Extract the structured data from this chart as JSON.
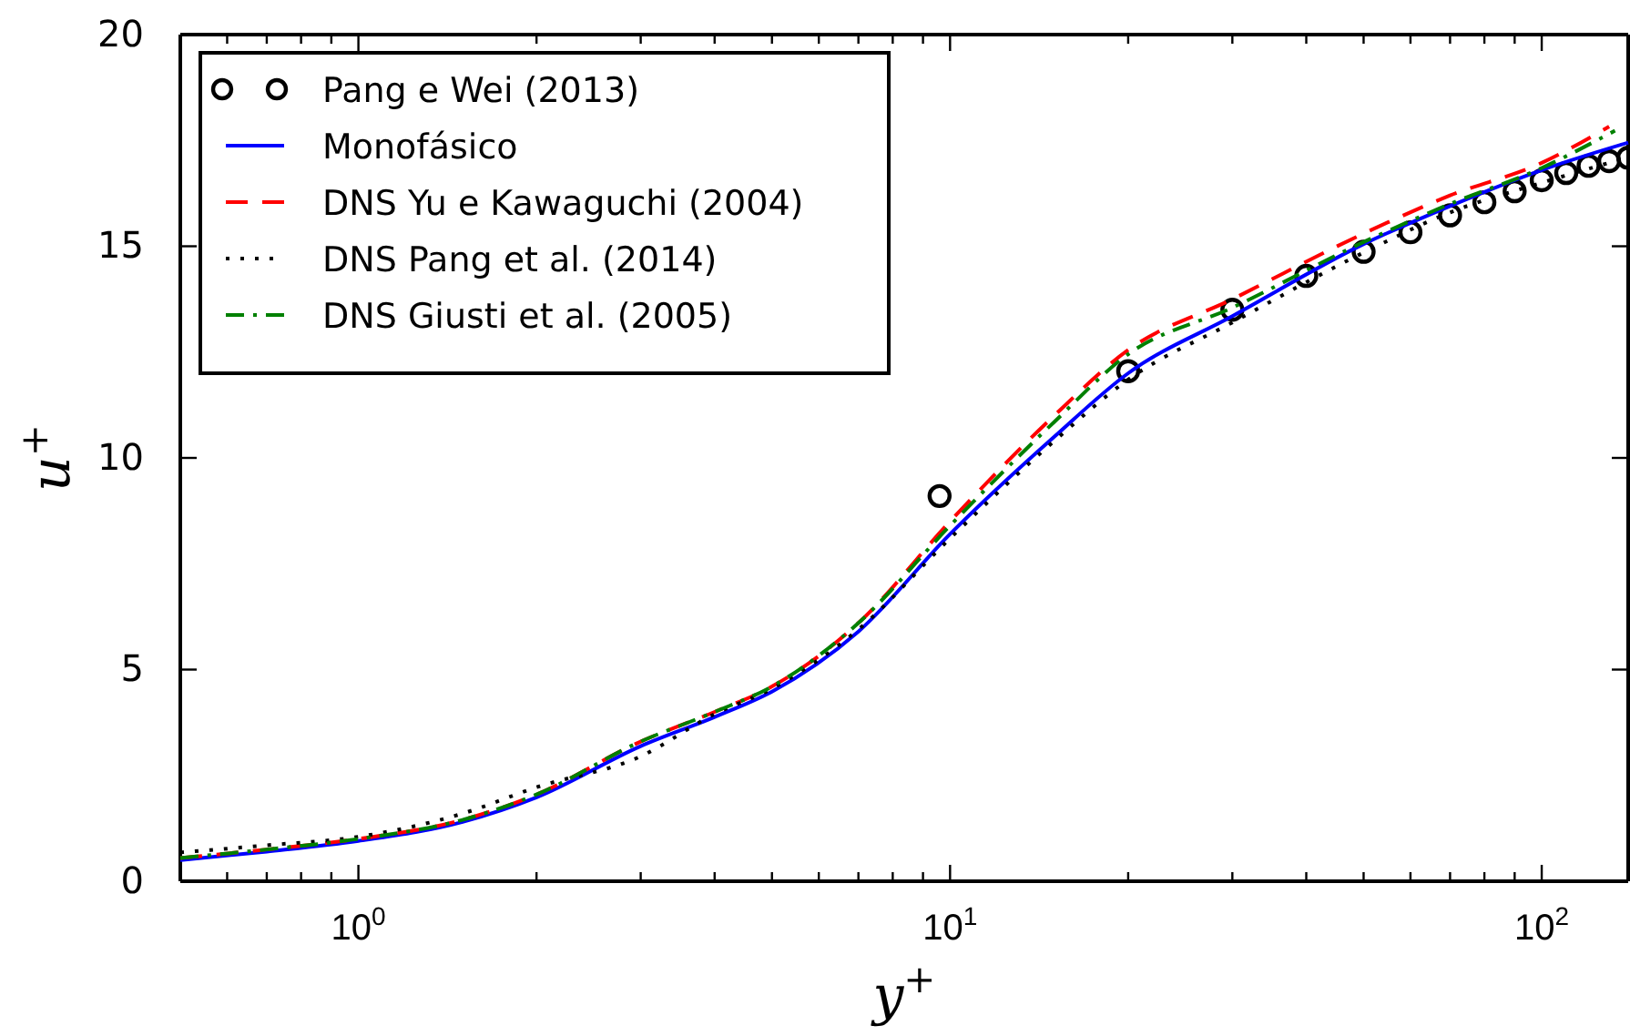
{
  "chart_data": {
    "type": "line",
    "xlabel": "y$^{+}$",
    "ylabel": "u$^{+}$",
    "log": "x",
    "xlim": [
      0.5,
      140
    ],
    "ylim": [
      0,
      20
    ],
    "xticks": [
      {
        "value": 0.6,
        "label": null
      },
      {
        "value": 0.7,
        "label": null
      },
      {
        "value": 0.8,
        "label": null
      },
      {
        "value": 0.9,
        "label": null
      },
      {
        "value": 1,
        "label": "10$^{0}$"
      },
      {
        "value": 2,
        "label": null
      },
      {
        "value": 3,
        "label": null
      },
      {
        "value": 4,
        "label": null
      },
      {
        "value": 5,
        "label": null
      },
      {
        "value": 6,
        "label": null
      },
      {
        "value": 7,
        "label": null
      },
      {
        "value": 8,
        "label": null
      },
      {
        "value": 9,
        "label": null
      },
      {
        "value": 10,
        "label": "10$^{1}$"
      },
      {
        "value": 20,
        "label": null
      },
      {
        "value": 30,
        "label": null
      },
      {
        "value": 40,
        "label": null
      },
      {
        "value": 50,
        "label": null
      },
      {
        "value": 60,
        "label": null
      },
      {
        "value": 70,
        "label": null
      },
      {
        "value": 80,
        "label": null
      },
      {
        "value": 90,
        "label": null
      },
      {
        "value": 100,
        "label": "10$^{2}$"
      }
    ],
    "yticks": [
      0,
      5,
      10,
      15,
      20
    ],
    "grid": false,
    "legend": "top left",
    "series": [
      {
        "name": "Pang e Wei (2013)",
        "type": "scatter",
        "marker": "circle",
        "color": "#000000",
        "x": [
          9.6,
          20,
          30,
          40,
          50,
          60,
          70,
          80,
          90,
          100,
          110,
          120,
          130,
          140
        ],
        "values": [
          9.1,
          12.05,
          13.5,
          14.3,
          14.87,
          15.33,
          15.73,
          16.04,
          16.3,
          16.56,
          16.73,
          16.9,
          17.01,
          17.09
        ]
      },
      {
        "name": "Monofásico",
        "line_style": "solid",
        "color": "#0000ff",
        "x": [
          0.5,
          0.7,
          1,
          1.5,
          2,
          3,
          4,
          5,
          7,
          10,
          15,
          20,
          30,
          50,
          70,
          100,
          140
        ],
        "values": [
          0.5,
          0.7,
          0.95,
          1.4,
          1.98,
          3.19,
          3.88,
          4.48,
          5.9,
          8.2,
          10.5,
          12.0,
          13.35,
          15.05,
          15.95,
          16.8,
          17.45
        ]
      },
      {
        "name": "DNS Yu e Kawaguchi (2004)",
        "line_style": "dashed",
        "color": "#ff0000",
        "x": [
          0.5,
          0.7,
          1,
          1.5,
          2,
          3,
          4,
          5,
          7,
          10,
          15,
          20,
          30,
          50,
          70,
          100,
          130
        ],
        "values": [
          0.55,
          0.75,
          1.0,
          1.45,
          2.05,
          3.3,
          4.0,
          4.6,
          6.1,
          8.5,
          11.0,
          12.55,
          13.75,
          15.3,
          16.2,
          16.97,
          17.83
        ]
      },
      {
        "name": "DNS Pang et al. (2014)",
        "line_style": "dotted",
        "color": "#000000",
        "x": [
          0.5,
          0.7,
          1,
          1.5,
          2,
          3,
          4,
          5,
          7,
          10,
          15,
          20,
          30,
          50,
          70,
          100,
          140
        ],
        "values": [
          0.68,
          0.85,
          1.05,
          1.6,
          2.22,
          2.95,
          3.95,
          4.55,
          5.95,
          8.1,
          10.4,
          11.85,
          13.2,
          14.85,
          15.8,
          16.5,
          17.1
        ]
      },
      {
        "name": "DNS Giusti et al. (2005)",
        "line_style": "dashdot",
        "color": "#008000",
        "x": [
          0.5,
          0.7,
          1,
          1.5,
          2,
          3,
          4,
          5,
          7,
          10,
          15,
          20,
          30,
          50,
          70,
          100,
          133
        ],
        "values": [
          0.55,
          0.75,
          1.0,
          1.45,
          2.05,
          3.3,
          4.0,
          4.6,
          6.1,
          8.4,
          10.85,
          12.45,
          13.55,
          15.1,
          16.0,
          16.85,
          17.73
        ]
      }
    ]
  }
}
